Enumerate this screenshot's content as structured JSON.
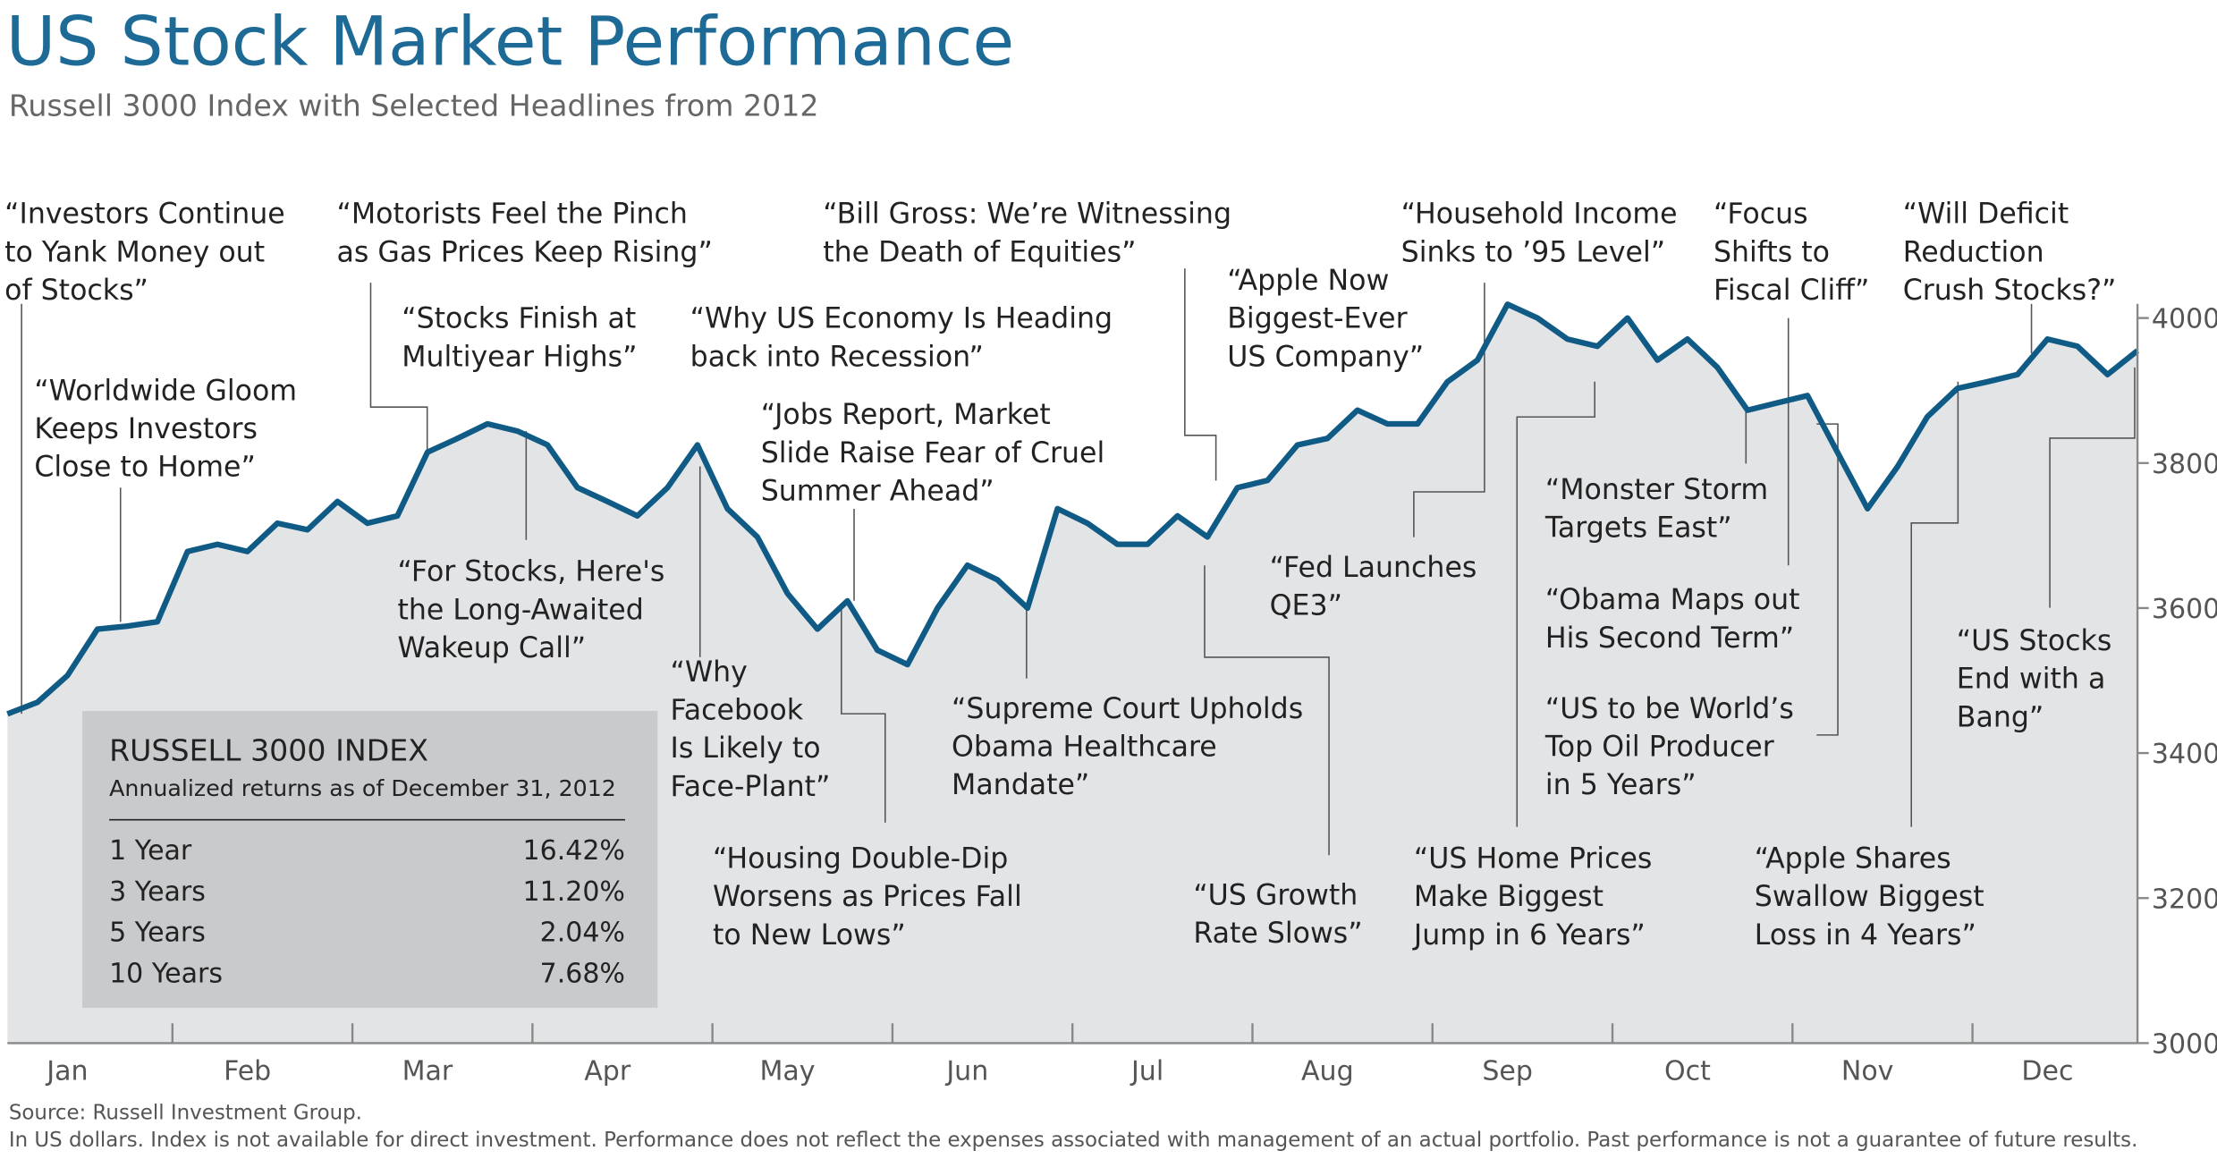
{
  "chart_data": {
    "type": "line",
    "title": "US Stock Market Performance",
    "subtitle": "Russell 3000 Index with Selected Headlines from 2012",
    "categories": [
      null,
      null,
      "Jan",
      null,
      null,
      null,
      null,
      null,
      "Feb",
      null,
      null,
      null,
      null,
      null,
      "Mar",
      null,
      null,
      null,
      null,
      null,
      "Apr",
      null,
      null,
      null,
      null,
      null,
      "May",
      null,
      null,
      null,
      null,
      null,
      "Jun",
      null,
      null,
      null,
      null,
      null,
      "Jul",
      null,
      null,
      null,
      null,
      null,
      "Aug",
      null,
      null,
      null,
      null,
      null,
      "Sep",
      null,
      null,
      null,
      null,
      null,
      "Oct",
      null,
      null,
      null,
      null,
      null,
      "Nov",
      null,
      null,
      null,
      null,
      null,
      "Dec",
      null,
      null,
      null
    ],
    "series": [
      {
        "name": "Russell 3000 Index",
        "color": "#0f5b86",
        "values": [
          3454,
          3470,
          3507,
          3571,
          3575,
          3581,
          3678,
          3688,
          3678,
          3717,
          3708,
          3747,
          3717,
          3727,
          3815,
          3834,
          3854,
          3844,
          3825,
          3766,
          3747,
          3727,
          3766,
          3825,
          3737,
          3698,
          3620,
          3571,
          3610,
          3542,
          3522,
          3600,
          3659,
          3639,
          3600,
          3737,
          3717,
          3688,
          3688,
          3727,
          3698,
          3766,
          3776,
          3825,
          3834,
          3873,
          3854,
          3854,
          3912,
          3942,
          4019,
          4000,
          3971,
          3961,
          4000,
          3942,
          3971,
          3932,
          3873,
          3883,
          3893,
          3815,
          3737,
          3795,
          3864,
          3903,
          3912,
          3922,
          3971,
          3961,
          3922,
          3955
        ]
      }
    ],
    "ylim": [
      3000,
      4000
    ],
    "yticks": [
      3000,
      3200,
      3400,
      3600,
      3800,
      4000
    ],
    "area_color": "#e3e4e6",
    "annotations": [
      [
        "“Investors Continue",
        "to Yank Money out",
        "of Stocks”"
      ],
      [
        "“Worldwide Gloom",
        "Keeps Investors",
        "Close to Home”"
      ],
      [
        "“Motorists Feel the Pinch",
        "as Gas Prices Keep Rising”"
      ],
      [
        "“Stocks Finish at",
        "Multiyear Highs”"
      ],
      [
        "“For Stocks, Here's",
        "the Long-Awaited",
        "Wakeup Call”"
      ],
      [
        "“Why US Economy Is Heading",
        "back into Recession”"
      ],
      [
        "“Bill Gross: We’re Witnessing",
        "the Death of Equities”"
      ],
      [
        "“Jobs Report, Market",
        "Slide Raise Fear of Cruel",
        "Summer Ahead”"
      ],
      [
        "“Why",
        "Facebook",
        "Is Likely to",
        "Face-Plant”"
      ],
      [
        "“Housing Double-Dip",
        "Worsens as Prices Fall",
        "to New Lows”"
      ],
      [
        "“Supreme Court Upholds",
        "Obama Healthcare",
        "Mandate”"
      ],
      [
        "“Apple Now",
        "Biggest-Ever",
        "US Company”"
      ],
      [
        "“Fed Launches",
        "QE3”"
      ],
      [
        "“US Growth",
        "Rate Slows”"
      ],
      [
        "“Household Income",
        "Sinks to ’95 Level”"
      ],
      [
        "“Monster Storm",
        "Targets East”"
      ],
      [
        "“Obama Maps out",
        "His Second Term”"
      ],
      [
        "“US to be World’s",
        "Top Oil Producer",
        "in 5 Years”"
      ],
      [
        "“US Home Prices",
        "Make Biggest",
        "Jump in 6 Years”"
      ],
      [
        "“Focus",
        "Shifts to",
        "Fiscal Cliff”"
      ],
      [
        "“Will Deficit",
        "Reduction",
        "Crush Stocks?”"
      ],
      [
        "“Apple Shares",
        "Swallow Biggest",
        "Loss in 4 Years”"
      ],
      [
        "“US Stocks",
        "End with a",
        "Bang”"
      ]
    ],
    "inset": {
      "title": "RUSSELL 3000 INDEX",
      "subtitle": "Annualized returns as of December 31, 2012",
      "rows": [
        [
          "1 Year",
          "16.42%"
        ],
        [
          "3 Years",
          "11.20%"
        ],
        [
          "5 Years",
          "2.04%"
        ],
        [
          "10 Years",
          "7.68%"
        ]
      ]
    },
    "source": "Source: Russell Investment Group.",
    "note": "In US dollars. Index is not available for direct investment. Performance does not reflect the expenses associated with management of an actual portfolio. Past performance is not a guarantee of future results."
  }
}
